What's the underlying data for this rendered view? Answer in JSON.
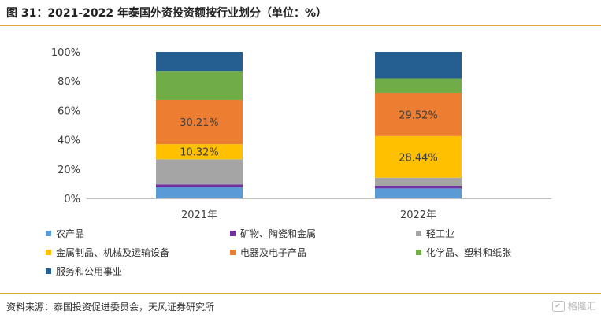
{
  "header": {
    "title": "图 31：2021-2022 年泰国外资投资额按行业划分（单位：%）"
  },
  "footer": {
    "source": "资料来源：泰国投资促进委员会，天风证券研究所",
    "watermark": "格隆汇"
  },
  "chart_data": {
    "type": "bar",
    "stacked": true,
    "categories": [
      "2021年",
      "2022年"
    ],
    "ylim": [
      0,
      100
    ],
    "yticks": [
      "0%",
      "20%",
      "40%",
      "60%",
      "80%",
      "100%"
    ],
    "grid": false,
    "legend_position": "bottom",
    "series": [
      {
        "name": "农产品",
        "color": "#5b9bd5",
        "values": [
          7.5,
          6.8
        ],
        "labels": [
          "",
          ""
        ]
      },
      {
        "name": "矿物、陶瓷和金属",
        "color": "#7030a0",
        "values": [
          2.0,
          1.8
        ],
        "labels": [
          "",
          ""
        ]
      },
      {
        "name": "轻工业",
        "color": "#a5a5a5",
        "values": [
          17.2,
          5.5
        ],
        "labels": [
          "",
          ""
        ]
      },
      {
        "name": "金属制品、机械及运输设备",
        "color": "#ffc000",
        "values": [
          10.32,
          28.44
        ],
        "labels": [
          "10.32%",
          "28.44%"
        ]
      },
      {
        "name": "电器及电子产品",
        "color": "#ed7d31",
        "values": [
          30.21,
          29.52
        ],
        "labels": [
          "30.21%",
          "29.52%"
        ]
      },
      {
        "name": "化学品、塑料和纸张",
        "color": "#70ad47",
        "values": [
          19.77,
          9.94
        ],
        "labels": [
          "",
          ""
        ]
      },
      {
        "name": "服务和公用事业",
        "color": "#255e91",
        "values": [
          13.0,
          18.0
        ],
        "labels": [
          "",
          ""
        ]
      }
    ]
  }
}
